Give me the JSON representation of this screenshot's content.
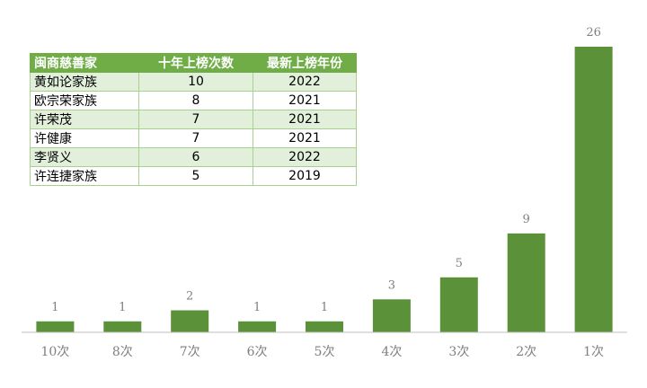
{
  "colors": {
    "bar": "#5b9138",
    "axis": "#bfbfbf",
    "table_header": "#70ad47",
    "table_band": "#e2efda"
  },
  "table": {
    "headers": [
      "闽商慈善家",
      "十年上榜次数",
      "最新上榜年份"
    ],
    "rows": [
      [
        "黄如论家族",
        "10",
        "2022"
      ],
      [
        "欧宗荣家族",
        "8",
        "2021"
      ],
      [
        "许荣茂",
        "7",
        "2021"
      ],
      [
        "许健康",
        "7",
        "2021"
      ],
      [
        "李贤义",
        "6",
        "2022"
      ],
      [
        "许连捷家族",
        "5",
        "2019"
      ]
    ]
  },
  "chart_data": {
    "type": "bar",
    "categories": [
      "10次",
      "8次",
      "7次",
      "6次",
      "5次",
      "4次",
      "3次",
      "2次",
      "1次"
    ],
    "values": [
      1,
      1,
      2,
      1,
      1,
      3,
      5,
      9,
      26
    ],
    "ylim": [
      0,
      26
    ],
    "grid": false,
    "data_labels": true
  }
}
